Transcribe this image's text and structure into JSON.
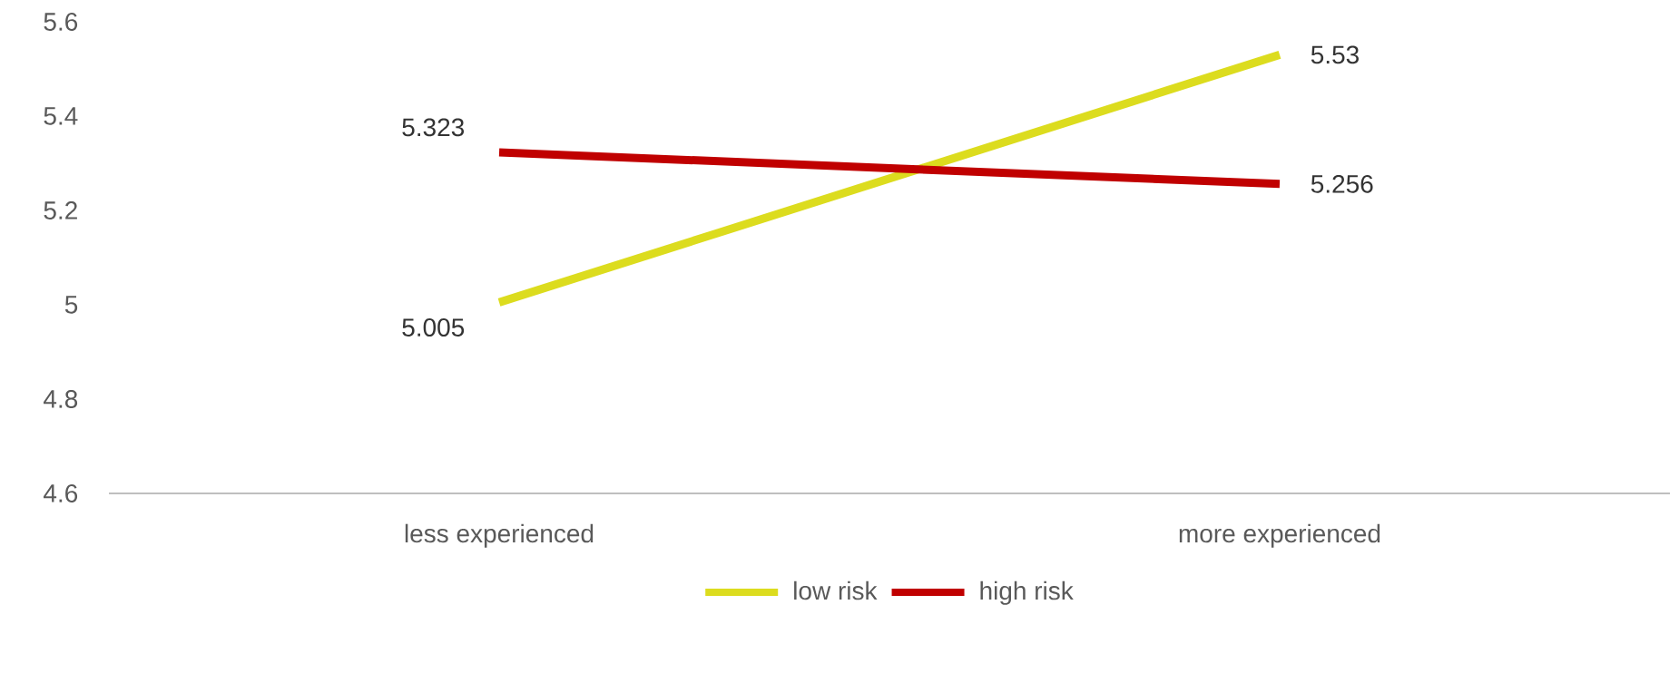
{
  "chart_data": {
    "type": "line",
    "categories": [
      "less experienced",
      "more experienced"
    ],
    "series": [
      {
        "name": "low risk",
        "color": "#dcdc1e",
        "values": [
          5.005,
          5.53
        ]
      },
      {
        "name": "high risk",
        "color": "#c00000",
        "values": [
          5.323,
          5.256
        ]
      }
    ],
    "ylim": [
      4.6,
      5.6
    ],
    "yticks": [
      4.6,
      4.8,
      5,
      5.2,
      5.4,
      5.6
    ],
    "data_labels": true,
    "legend": "bottom",
    "marker": "none",
    "line_style": "solid"
  }
}
